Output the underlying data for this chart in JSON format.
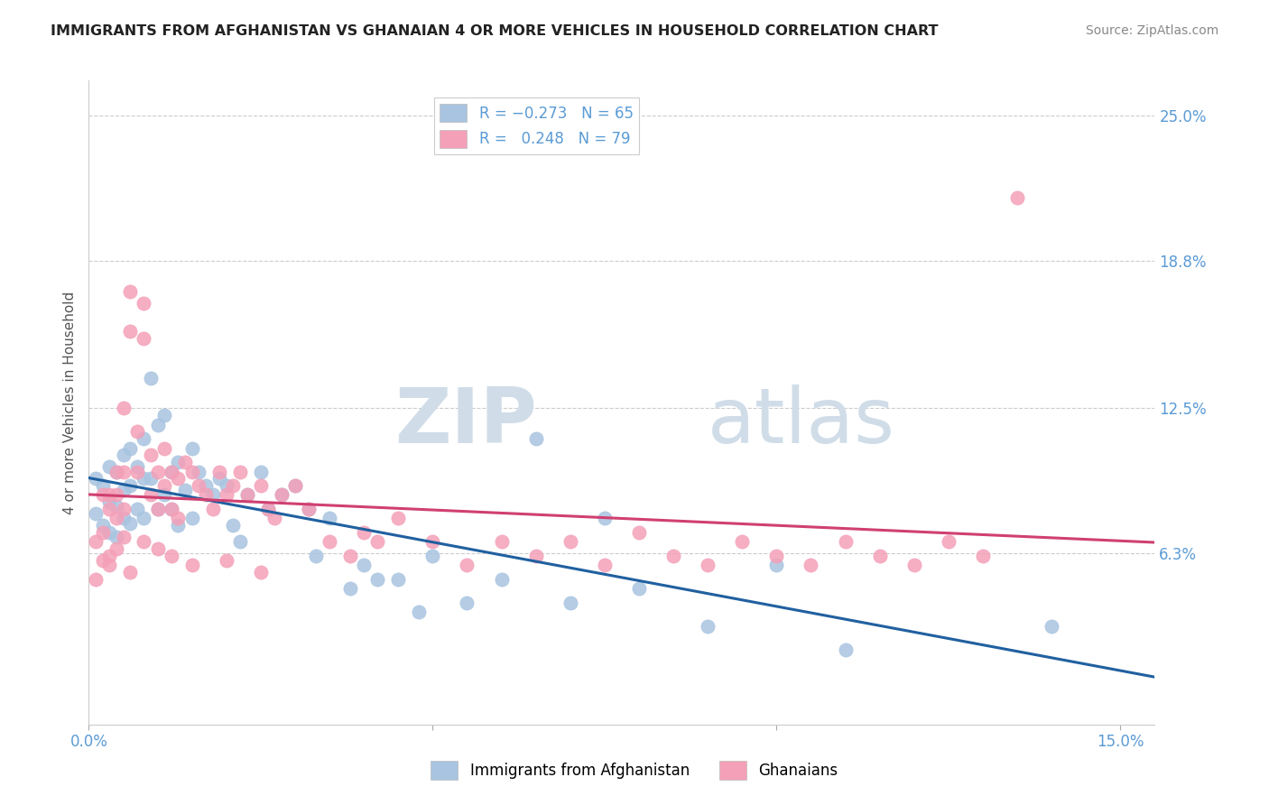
{
  "title": "IMMIGRANTS FROM AFGHANISTAN VS GHANAIAN 4 OR MORE VEHICLES IN HOUSEHOLD CORRELATION CHART",
  "source": "Source: ZipAtlas.com",
  "ylabel": "4 or more Vehicles in Household",
  "x_min": 0.0,
  "x_max": 0.155,
  "y_min": -0.01,
  "y_max": 0.265,
  "y_ticks_right": [
    0.063,
    0.125,
    0.188,
    0.25
  ],
  "y_tick_labels_right": [
    "6.3%",
    "12.5%",
    "18.8%",
    "25.0%"
  ],
  "blue_color": "#a8c4e0",
  "pink_color": "#f4a0b8",
  "blue_line_color": "#2060a0",
  "pink_line_color": "#d04070",
  "blue_scatter_x": [
    0.001,
    0.001,
    0.002,
    0.002,
    0.003,
    0.003,
    0.003,
    0.004,
    0.004,
    0.004,
    0.005,
    0.005,
    0.005,
    0.006,
    0.006,
    0.006,
    0.007,
    0.007,
    0.008,
    0.008,
    0.008,
    0.009,
    0.009,
    0.01,
    0.01,
    0.011,
    0.011,
    0.012,
    0.012,
    0.013,
    0.013,
    0.014,
    0.015,
    0.015,
    0.016,
    0.017,
    0.018,
    0.019,
    0.02,
    0.021,
    0.022,
    0.023,
    0.025,
    0.026,
    0.028,
    0.03,
    0.032,
    0.033,
    0.035,
    0.038,
    0.04,
    0.042,
    0.045,
    0.048,
    0.05,
    0.055,
    0.06,
    0.065,
    0.07,
    0.075,
    0.08,
    0.09,
    0.1,
    0.11,
    0.14
  ],
  "blue_scatter_y": [
    0.095,
    0.08,
    0.092,
    0.075,
    0.1,
    0.085,
    0.072,
    0.098,
    0.083,
    0.07,
    0.105,
    0.09,
    0.078,
    0.108,
    0.092,
    0.076,
    0.1,
    0.082,
    0.112,
    0.095,
    0.078,
    0.138,
    0.095,
    0.118,
    0.082,
    0.122,
    0.088,
    0.098,
    0.082,
    0.102,
    0.075,
    0.09,
    0.108,
    0.078,
    0.098,
    0.092,
    0.088,
    0.095,
    0.092,
    0.075,
    0.068,
    0.088,
    0.098,
    0.082,
    0.088,
    0.092,
    0.082,
    0.062,
    0.078,
    0.048,
    0.058,
    0.052,
    0.052,
    0.038,
    0.062,
    0.042,
    0.052,
    0.112,
    0.042,
    0.078,
    0.048,
    0.032,
    0.058,
    0.022,
    0.032
  ],
  "pink_scatter_x": [
    0.001,
    0.001,
    0.002,
    0.002,
    0.003,
    0.003,
    0.003,
    0.004,
    0.004,
    0.004,
    0.005,
    0.005,
    0.005,
    0.006,
    0.006,
    0.007,
    0.007,
    0.008,
    0.008,
    0.009,
    0.009,
    0.01,
    0.01,
    0.011,
    0.011,
    0.012,
    0.012,
    0.013,
    0.013,
    0.014,
    0.015,
    0.016,
    0.017,
    0.018,
    0.019,
    0.02,
    0.021,
    0.022,
    0.023,
    0.025,
    0.026,
    0.027,
    0.028,
    0.03,
    0.032,
    0.035,
    0.038,
    0.04,
    0.042,
    0.045,
    0.05,
    0.055,
    0.06,
    0.065,
    0.07,
    0.075,
    0.08,
    0.085,
    0.09,
    0.095,
    0.1,
    0.105,
    0.11,
    0.115,
    0.12,
    0.125,
    0.13,
    0.135,
    0.002,
    0.003,
    0.004,
    0.005,
    0.006,
    0.008,
    0.01,
    0.012,
    0.015,
    0.02,
    0.025
  ],
  "pink_scatter_y": [
    0.068,
    0.052,
    0.088,
    0.072,
    0.088,
    0.082,
    0.062,
    0.098,
    0.088,
    0.078,
    0.125,
    0.098,
    0.082,
    0.175,
    0.158,
    0.115,
    0.098,
    0.17,
    0.155,
    0.105,
    0.088,
    0.098,
    0.082,
    0.108,
    0.092,
    0.098,
    0.082,
    0.095,
    0.078,
    0.102,
    0.098,
    0.092,
    0.088,
    0.082,
    0.098,
    0.088,
    0.092,
    0.098,
    0.088,
    0.092,
    0.082,
    0.078,
    0.088,
    0.092,
    0.082,
    0.068,
    0.062,
    0.072,
    0.068,
    0.078,
    0.068,
    0.058,
    0.068,
    0.062,
    0.068,
    0.058,
    0.072,
    0.062,
    0.058,
    0.068,
    0.062,
    0.058,
    0.068,
    0.062,
    0.058,
    0.068,
    0.062,
    0.215,
    0.06,
    0.058,
    0.065,
    0.07,
    0.055,
    0.068,
    0.065,
    0.062,
    0.058,
    0.06,
    0.055
  ],
  "watermark_zip": "ZIP",
  "watermark_atlas": "atlas",
  "grid_color": "#cccccc",
  "title_color": "#222222",
  "tick_label_color": "#5b9bd5",
  "source_color": "#888888"
}
